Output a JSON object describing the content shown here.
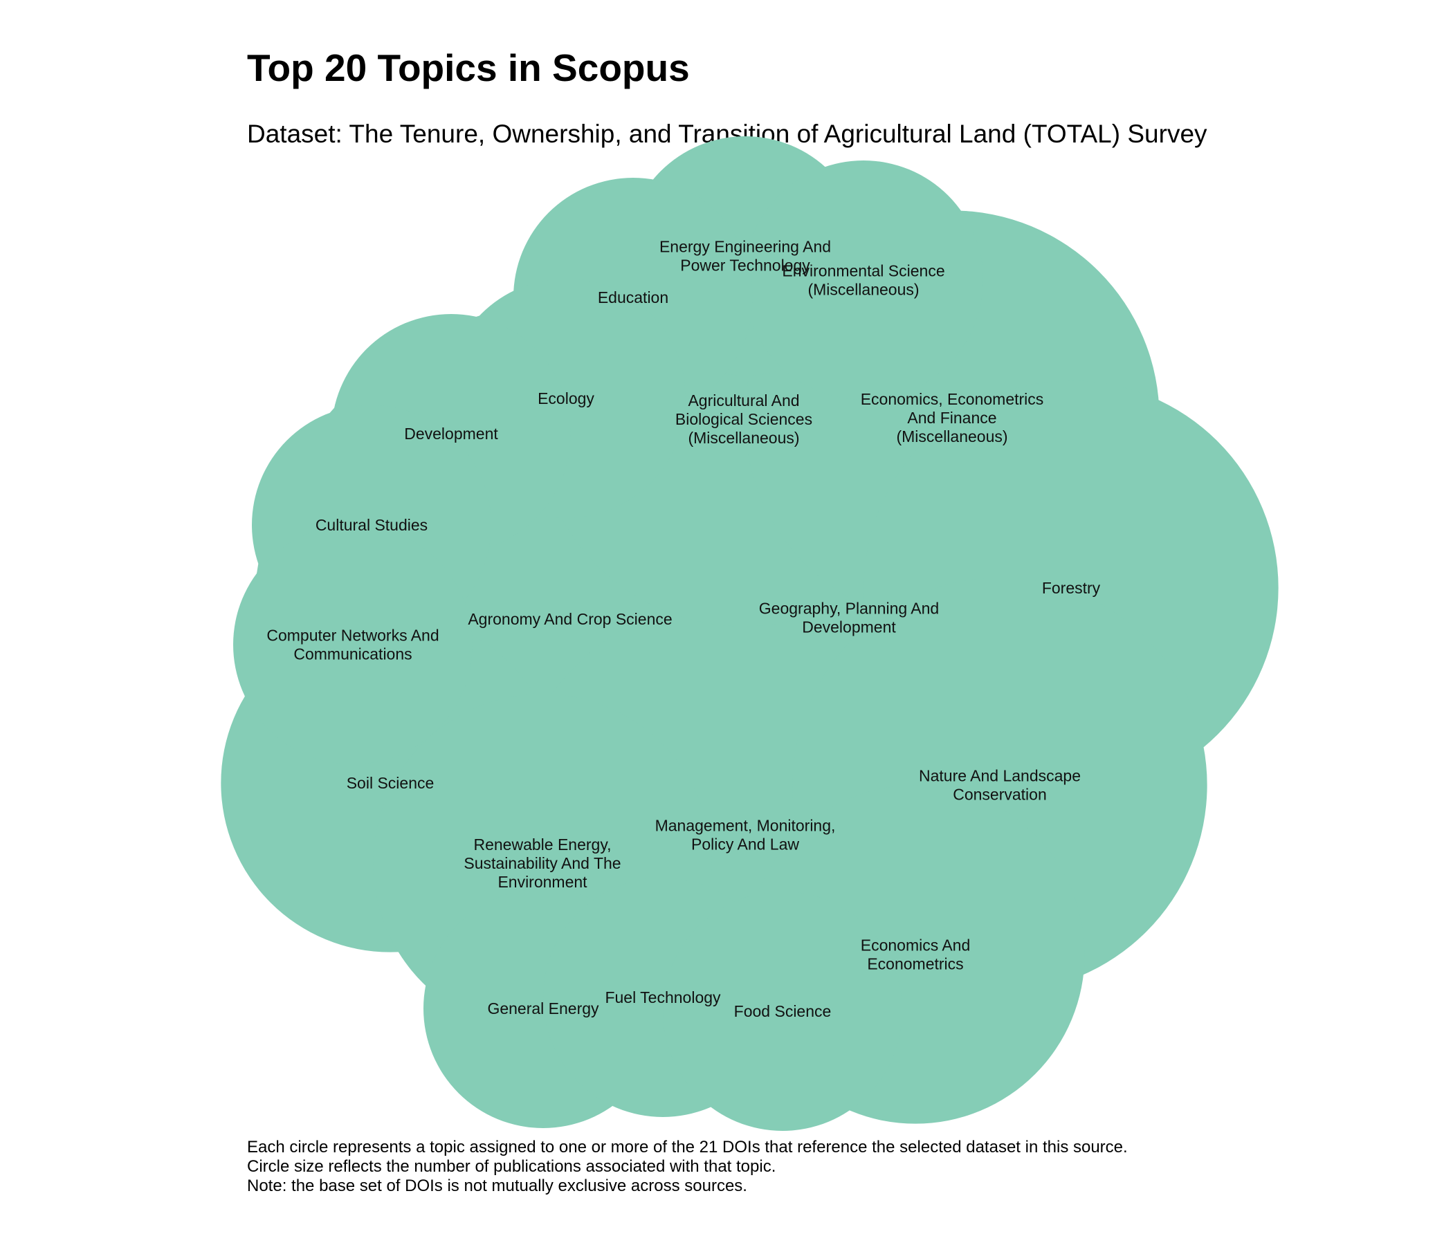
{
  "header": {
    "title": "Top 20 Topics in Scopus",
    "subtitle": "Dataset: The Tenure, Ownership, and Transition of Agricultural Land (TOTAL) Survey"
  },
  "notes": [
    "Each circle represents a topic assigned to one or more of the 21 DOIs that reference the selected dataset in this source.",
    "Circle size reflects the number of publications associated with that topic.",
    "Note: the base set of DOIs is not mutually exclusive across sources."
  ],
  "chart_data": {
    "type": "bubble-pack",
    "title": "Top 20 Topics in Scopus",
    "subtitle": "Dataset: The Tenure, Ownership, and Transition of Agricultural Land (TOTAL) Survey",
    "color": "#85CDB6",
    "topics": [
      {
        "name": "Agronomy And Crop Science",
        "lines": [
          "Agronomy And Crop Science"
        ],
        "value": 7
      },
      {
        "name": "Geography, Planning And Development",
        "lines": [
          "Geography, Planning And",
          "Development"
        ],
        "value": 4
      },
      {
        "name": "Management, Monitoring, Policy And Law",
        "lines": [
          "Management, Monitoring,",
          "Policy And Law"
        ],
        "value": 4
      },
      {
        "name": "Agricultural And Biological Sciences (Miscellaneous)",
        "lines": [
          "Agricultural And",
          "Biological Sciences",
          "(Miscellaneous)"
        ],
        "value": 3
      },
      {
        "name": "Economics, Econometrics And Finance (Miscellaneous)",
        "lines": [
          "Economics, Econometrics",
          "And Finance",
          "(Miscellaneous)"
        ],
        "value": 3
      },
      {
        "name": "Forestry",
        "lines": [
          "Forestry"
        ],
        "value": 3
      },
      {
        "name": "Nature And Landscape Conservation",
        "lines": [
          "Nature And Landscape",
          "Conservation"
        ],
        "value": 3
      },
      {
        "name": "Soil Science",
        "lines": [
          "Soil Science"
        ],
        "value": 2
      },
      {
        "name": "Renewable Energy, Sustainability And The Environment",
        "lines": [
          "Renewable Energy,",
          "Sustainability And The",
          "Environment"
        ],
        "value": 2
      },
      {
        "name": "Economics And Econometrics",
        "lines": [
          "Economics And",
          "Econometrics"
        ],
        "value": 2
      },
      {
        "name": "Energy Engineering And Power Technology",
        "lines": [
          "Energy Engineering And",
          "Power Technology"
        ],
        "value": 1
      },
      {
        "name": "Environmental Science (Miscellaneous)",
        "lines": [
          "Environmental Science",
          "(Miscellaneous)"
        ],
        "value": 1
      },
      {
        "name": "Education",
        "lines": [
          "Education"
        ],
        "value": 1
      },
      {
        "name": "Ecology",
        "lines": [
          "Ecology"
        ],
        "value": 1
      },
      {
        "name": "Development",
        "lines": [
          "Development"
        ],
        "value": 1
      },
      {
        "name": "Cultural Studies",
        "lines": [
          "Cultural Studies"
        ],
        "value": 1
      },
      {
        "name": "Computer Networks And Communications",
        "lines": [
          "Computer Networks And",
          "Communications"
        ],
        "value": 1
      },
      {
        "name": "General Energy",
        "lines": [
          "General Energy"
        ],
        "value": 1
      },
      {
        "name": "Fuel Technology",
        "lines": [
          "Fuel Technology"
        ],
        "value": 1
      },
      {
        "name": "Food Science",
        "lines": [
          "Food Science"
        ],
        "value": 1
      }
    ]
  }
}
